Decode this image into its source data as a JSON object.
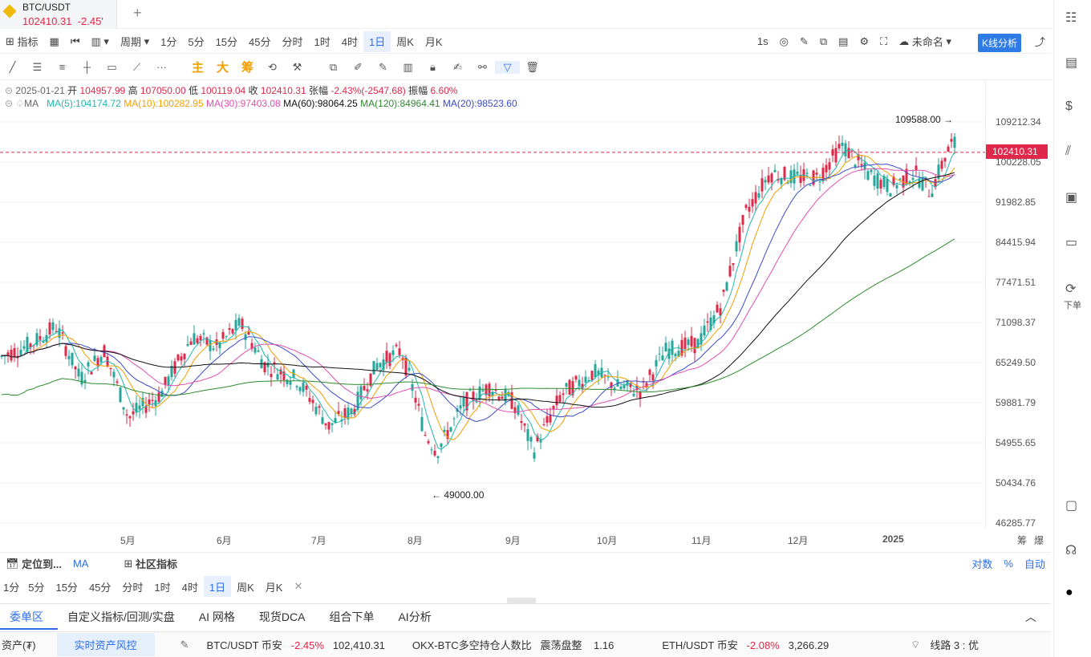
{
  "tab": {
    "symbol": "BTC/USDT",
    "price": "102410.31",
    "change": "-2.45'"
  },
  "tf_row": {
    "indicator": "指标",
    "period": "周期",
    "items": [
      "1分",
      "5分",
      "15分",
      "45分",
      "分时",
      "1时",
      "4时",
      "1日",
      "周K",
      "月K"
    ],
    "active": "1日",
    "right": [
      "1s",
      "未命名",
      "K线分析"
    ]
  },
  "draw_row": {
    "chars": [
      "主",
      "大",
      "筹"
    ]
  },
  "ohlc": {
    "date": "2025-01-21",
    "open_l": "开",
    "open": "104957.99",
    "high_l": "高",
    "high": "107050.00",
    "low_l": "低",
    "low": "100119.04",
    "close_l": "收",
    "close": "102410.31",
    "chg_l": "张幅",
    "chg": "-2.43%(-2547.68)",
    "amp_l": "振幅",
    "amp": "6.60%"
  },
  "ma": {
    "label": "MA",
    "ma5": "MA(5):104174.72",
    "ma10": "MA(10):100282.95",
    "ma30": "MA(30):97403.08",
    "ma60": "MA(60):98064.25",
    "ma120": "MA(120):84964.41",
    "ma20": "MA(20):98523.60"
  },
  "colors": {
    "ma5": "#1db7b0",
    "ma10": "#f0a000",
    "ma30": "#e050b0",
    "ma60": "#111111",
    "ma120": "#2e8b2e",
    "ma20": "#3b4bc8",
    "up": "#26a69a",
    "down": "#e0294a"
  },
  "yaxis": [
    "109212.34",
    "100228.05",
    "91982.85",
    "84415.94",
    "77471.51",
    "71098.37",
    "65249.50",
    "59881.79",
    "54955.65",
    "50434.76",
    "46285.77"
  ],
  "last_price": "102410.31",
  "xaxis": [
    "5月",
    "6月",
    "7月",
    "8月",
    "9月",
    "10月",
    "11月",
    "12月",
    "2025"
  ],
  "annotations": {
    "high": "109588.00",
    "low": "49000.00"
  },
  "axis_right": [
    "筹",
    "爆"
  ],
  "bottom1": {
    "locate": "定位到...",
    "ma": "MA",
    "community": "社区指标",
    "right": [
      "对数",
      "%",
      "自动"
    ]
  },
  "bottom2": {
    "items": [
      "1分",
      "5分",
      "15分",
      "45分",
      "分时",
      "1时",
      "4时",
      "1日",
      "周K",
      "月K"
    ],
    "active": "1日"
  },
  "tabs": [
    "委单区",
    "自定义指标/回测/实盘",
    "AI 网格",
    "现货DCA",
    "组合下单",
    "AI分析"
  ],
  "status": {
    "asset": "资产(₮)",
    "risk": "实时资产风控",
    "p1": "BTC/USDT 币安",
    "p1c": "-2.45%",
    "p1v": "102,410.31",
    "p2": "OKX-BTC多空持仓人数比",
    "p2s": "震荡盘整",
    "p2v": "1.16",
    "p3": "ETH/USDT 币安",
    "p3c": "-2.08%",
    "p3v": "3,266.29",
    "line": "线路 3 : 优"
  },
  "side": {
    "label": "下单"
  }
}
